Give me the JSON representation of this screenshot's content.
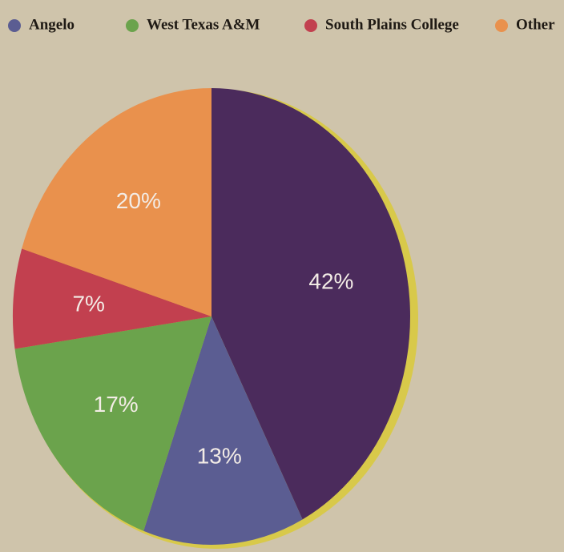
{
  "chart_data": {
    "type": "pie",
    "categories": [
      null,
      "Angelo",
      "West Texas A&M",
      "South Plains College",
      "Other"
    ],
    "values": [
      42,
      13,
      17,
      7,
      20
    ],
    "value_labels": [
      "42%",
      "13%",
      "17%",
      "7%",
      "20%"
    ],
    "colors": [
      "#4b2b5c",
      "#5b5d92",
      "#6ba34c",
      "#c2404f",
      "#e9914d"
    ]
  }
}
